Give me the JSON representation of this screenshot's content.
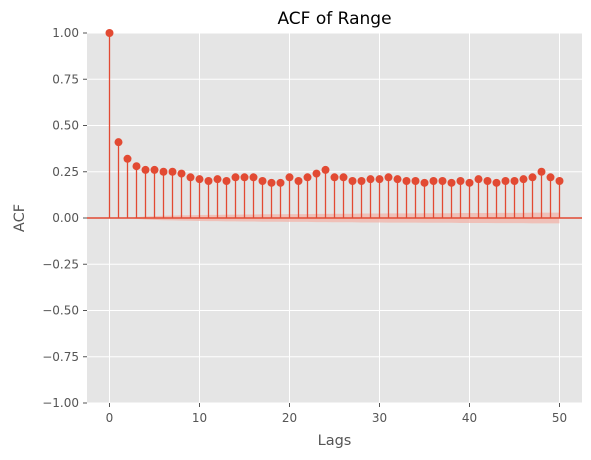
{
  "chart_data": {
    "type": "stem",
    "title": "ACF of Range",
    "xlabel": "Lags",
    "ylabel": "ACF",
    "xlim": [
      -2.5,
      52.5
    ],
    "ylim": [
      -1.0,
      1.0
    ],
    "xticks": [
      0,
      10,
      20,
      30,
      40,
      50
    ],
    "yticks": [
      -1.0,
      -0.75,
      -0.5,
      -0.25,
      0.0,
      0.25,
      0.5,
      0.75,
      1.0
    ],
    "xtick_labels": [
      "0",
      "10",
      "20",
      "30",
      "40",
      "50"
    ],
    "ytick_labels": [
      "−1.00",
      "−0.75",
      "−0.50",
      "−0.25",
      "0.00",
      "0.25",
      "0.50",
      "0.75",
      "1.00"
    ],
    "grid": true,
    "confidence_band": [
      0.0,
      0.0,
      0.0,
      0.005,
      0.008,
      0.01,
      0.012,
      0.013,
      0.014,
      0.015,
      0.016,
      0.017,
      0.017,
      0.018,
      0.018,
      0.019,
      0.019,
      0.02,
      0.02,
      0.02,
      0.021,
      0.021,
      0.021,
      0.022,
      0.022,
      0.023,
      0.023,
      0.023,
      0.024,
      0.024,
      0.024,
      0.025,
      0.025,
      0.025,
      0.025,
      0.026,
      0.026,
      0.026,
      0.026,
      0.027,
      0.027,
      0.027,
      0.027,
      0.028,
      0.028,
      0.028,
      0.028,
      0.029,
      0.029,
      0.029,
      0.029
    ],
    "lags": [
      0,
      1,
      2,
      3,
      4,
      5,
      6,
      7,
      8,
      9,
      10,
      11,
      12,
      13,
      14,
      15,
      16,
      17,
      18,
      19,
      20,
      21,
      22,
      23,
      24,
      25,
      26,
      27,
      28,
      29,
      30,
      31,
      32,
      33,
      34,
      35,
      36,
      37,
      38,
      39,
      40,
      41,
      42,
      43,
      44,
      45,
      46,
      47,
      48,
      49,
      50
    ],
    "values": [
      1.0,
      0.41,
      0.32,
      0.28,
      0.26,
      0.26,
      0.25,
      0.25,
      0.24,
      0.22,
      0.21,
      0.2,
      0.21,
      0.2,
      0.22,
      0.22,
      0.22,
      0.2,
      0.19,
      0.19,
      0.22,
      0.2,
      0.22,
      0.24,
      0.26,
      0.22,
      0.22,
      0.2,
      0.2,
      0.21,
      0.21,
      0.22,
      0.21,
      0.2,
      0.2,
      0.19,
      0.2,
      0.2,
      0.19,
      0.2,
      0.19,
      0.21,
      0.2,
      0.19,
      0.2,
      0.2,
      0.21,
      0.22,
      0.25,
      0.22,
      0.2
    ],
    "colors": {
      "stem": "#E24A33",
      "band": "#F2B3A8",
      "plot_bg": "#E5E5E5",
      "grid": "#FFFFFF"
    }
  }
}
